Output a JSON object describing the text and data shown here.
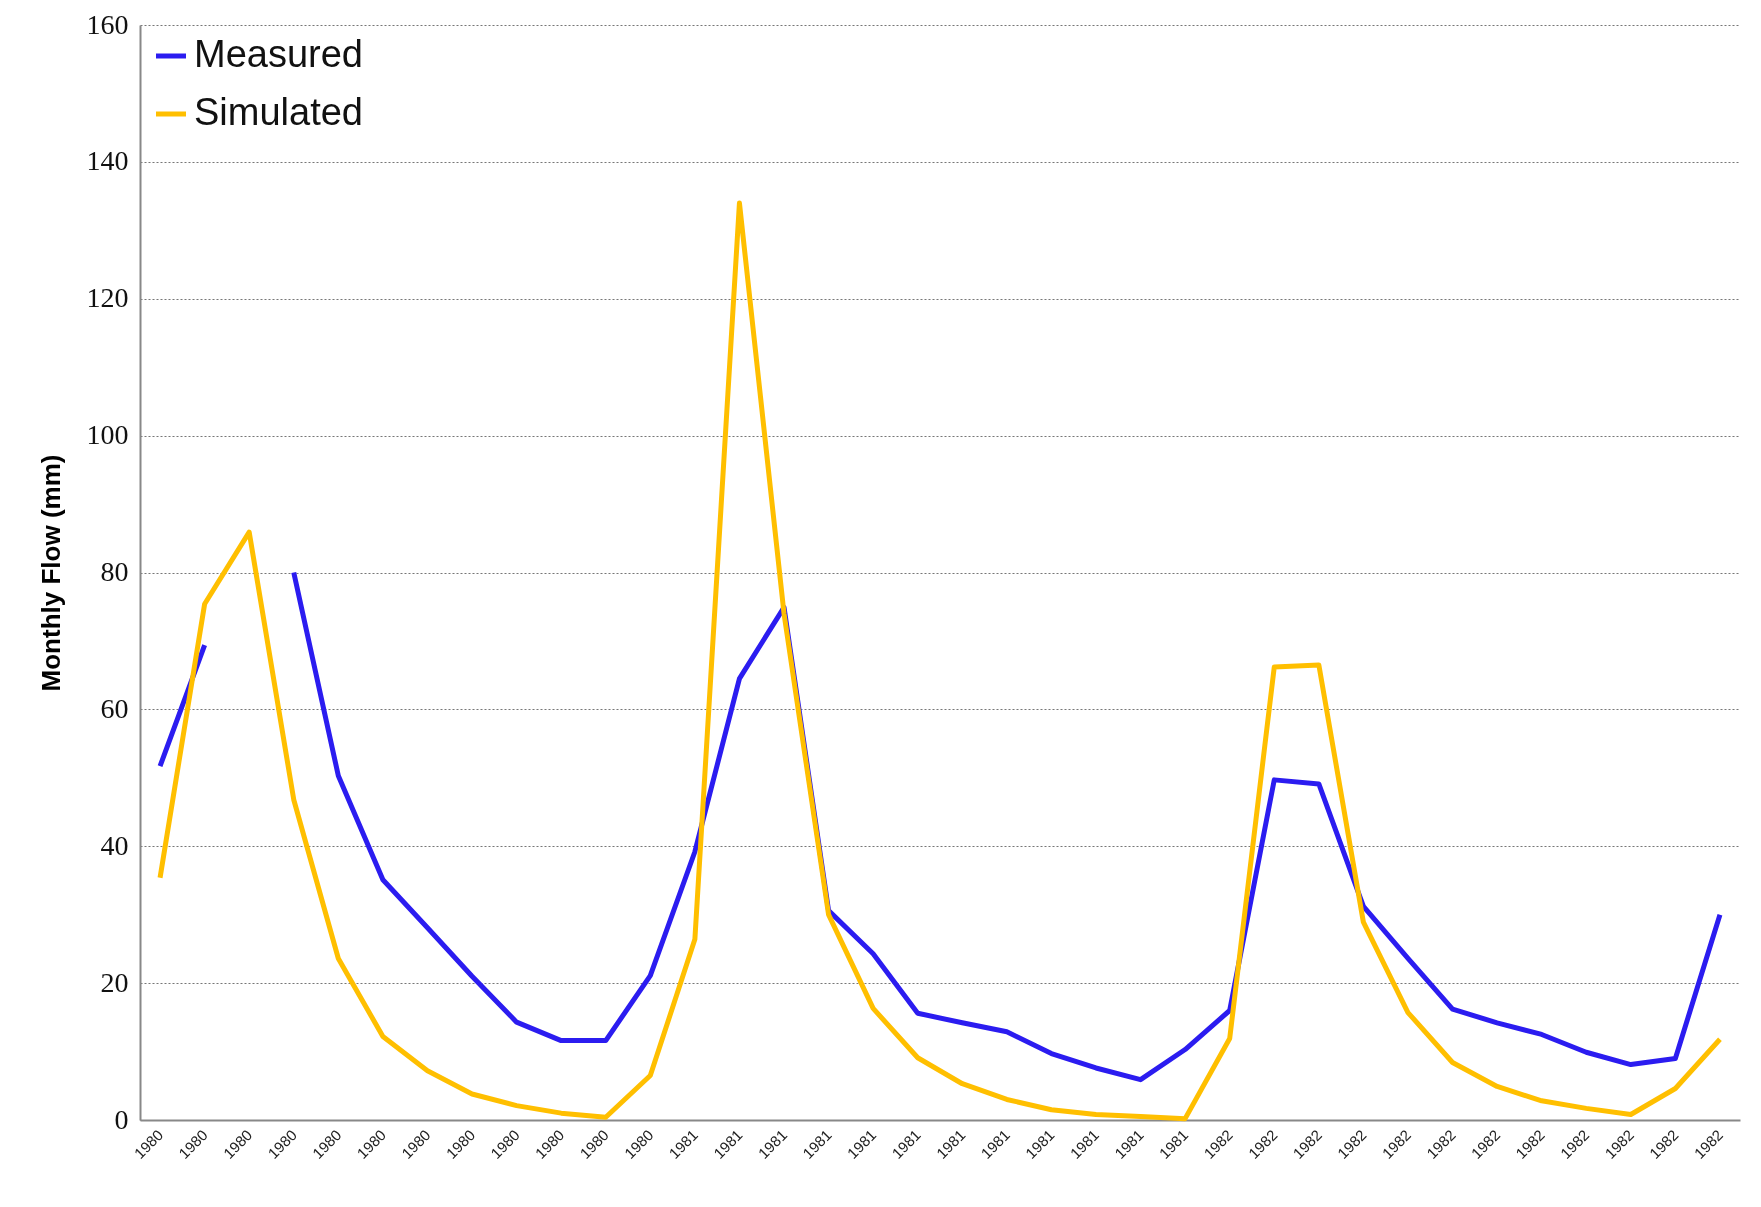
{
  "chart_data": {
    "type": "line",
    "ylabel": "Monthly Flow (mm)",
    "categories": [
      "1980",
      "1980",
      "1980",
      "1980",
      "1980",
      "1980",
      "1980",
      "1980",
      "1980",
      "1980",
      "1980",
      "1980",
      "1981",
      "1981",
      "1981",
      "1981",
      "1981",
      "1981",
      "1981",
      "1981",
      "1981",
      "1981",
      "1981",
      "1981",
      "1982",
      "1982",
      "1982",
      "1982",
      "1982",
      "1982",
      "1982",
      "1982",
      "1982",
      "1982",
      "1982",
      "1982"
    ],
    "series": [
      {
        "name": "Measured",
        "color": "#2b1cf0",
        "values": [
          51.7,
          69.4,
          null,
          80,
          50.3,
          35.1,
          28.1,
          21,
          14.3,
          11.6,
          11.6,
          21.1,
          39.2,
          64.5,
          74.9,
          30.6,
          24.3,
          15.6,
          14.2,
          12.9,
          9.7,
          7.6,
          5.9,
          10.3,
          16,
          49.7,
          49.1,
          31.2,
          23.6,
          16.2,
          14.2,
          12.5,
          9.9,
          8.1,
          9,
          30
        ]
      },
      {
        "name": "Simulated",
        "color": "#ffbf00",
        "values": [
          35.4,
          75.4,
          85.9,
          46.8,
          23.6,
          12.2,
          7.2,
          3.8,
          2.1,
          1,
          0.4,
          6.5,
          26.4,
          134,
          74,
          30,
          16.3,
          9.1,
          5.3,
          3,
          1.5,
          0.8,
          0.5,
          0.2,
          11.9,
          66.2,
          66.5,
          28.9,
          15.7,
          8.4,
          4.9,
          2.8,
          1.7,
          0.8,
          4.6,
          11.8
        ]
      }
    ],
    "ylim": [
      0,
      160
    ],
    "yticks": [
      0,
      20,
      40,
      60,
      80,
      100,
      120,
      140,
      160
    ],
    "grid": "y",
    "legend": "top left"
  }
}
